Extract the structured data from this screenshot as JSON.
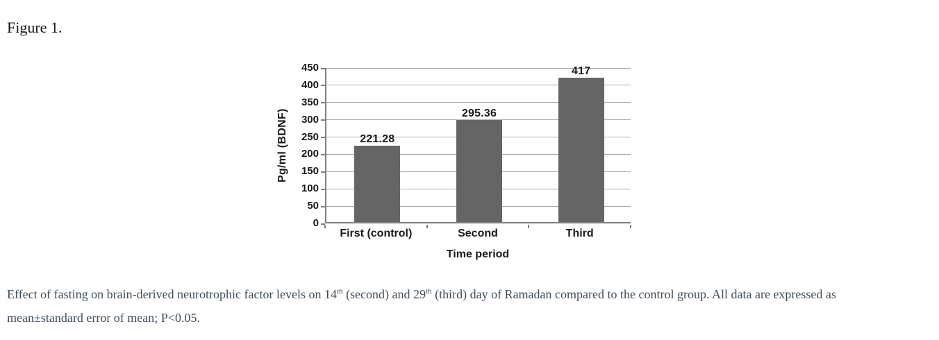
{
  "figure_label": "Figure 1.",
  "chart_data": {
    "type": "bar",
    "title": "",
    "categories": [
      "First (control)",
      "Second",
      "Third"
    ],
    "values": [
      221.28,
      295.36,
      417
    ],
    "value_labels": [
      "221.28",
      "295.36",
      "417"
    ],
    "xlabel": "Time period",
    "ylabel": "Pg/ml (BDNF)",
    "ylim": [
      0,
      450
    ],
    "ytick_step": 50,
    "yticks": [
      0,
      50,
      100,
      150,
      200,
      250,
      300,
      350,
      400,
      450
    ],
    "grid": true,
    "legend": "none",
    "colors": {
      "bar": "#656565",
      "gridline": "#a9a9a9",
      "axis": "#7f7f7f",
      "text": "#1a1a1a"
    }
  },
  "caption": {
    "parts": [
      {
        "text": "Effect of fasting on brain-derived neurotrophic factor levels on 14",
        "sup": false
      },
      {
        "text": "th",
        "sup": true
      },
      {
        "text": " (second) and 29",
        "sup": false
      },
      {
        "text": "th",
        "sup": true
      },
      {
        "text": " (third) day of Ramadan compared to the control group. All data are expressed as",
        "sup": false
      }
    ],
    "line2": "mean±standard error of mean; P<0.05."
  },
  "colors": {
    "background": "#ffffff",
    "caption_text": "#3e4c59",
    "title_text": "#151515"
  }
}
